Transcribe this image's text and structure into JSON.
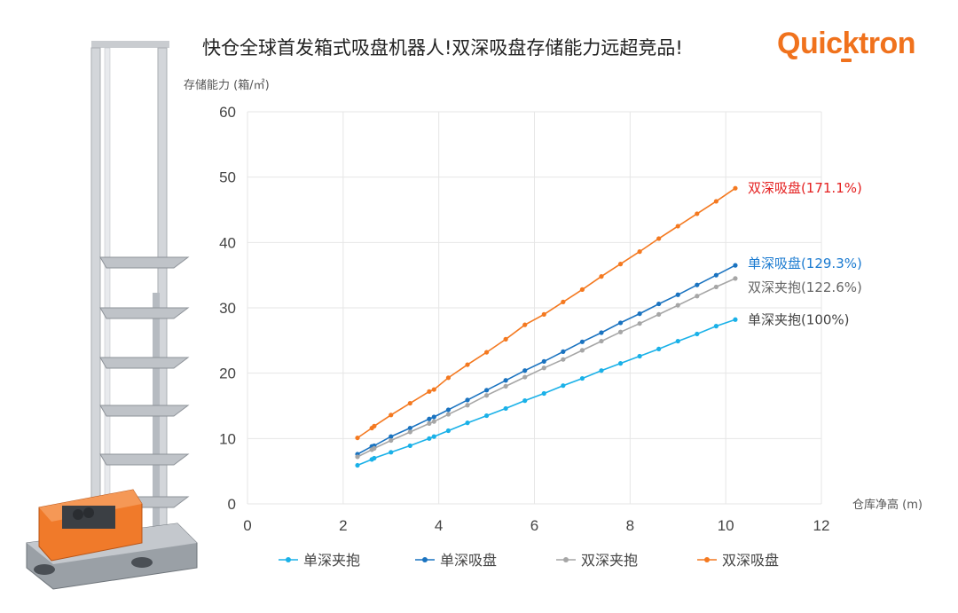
{
  "headline": "快仓全球首发箱式吸盘机器人!双深吸盘存储能力远超竞品!",
  "logo_text": "Quicktron",
  "colors": {
    "single_clamp": "#1ab1e8",
    "single_suction": "#1a73c0",
    "double_clamp": "#a6a6a6",
    "double_suction": "#f47920",
    "double_suction_label": "#e41f1f",
    "single_suction_label": "#1a7ad0",
    "double_clamp_label": "#666666",
    "single_clamp_label": "#444444",
    "grid": "#e6e6e6"
  },
  "chart_data": {
    "type": "line",
    "ylabel": "存储能力 (箱/㎡)",
    "xlabel": "仓库净高 (m)",
    "xlim": [
      0,
      12
    ],
    "ylim": [
      0,
      60
    ],
    "x_ticks": [
      0,
      2,
      4,
      6,
      8,
      10,
      12
    ],
    "y_ticks": [
      0,
      10,
      20,
      30,
      40,
      50,
      60
    ],
    "grid": true,
    "legend_position": "bottom",
    "series": [
      {
        "name": "单深夹抱",
        "end_label": "单深夹抱(100%)",
        "points": [
          [
            2.3,
            5.9
          ],
          [
            2.6,
            6.8
          ],
          [
            2.65,
            7.0
          ],
          [
            3.0,
            7.9
          ],
          [
            3.4,
            8.9
          ],
          [
            3.8,
            10.0
          ],
          [
            3.9,
            10.3
          ],
          [
            4.2,
            11.2
          ],
          [
            4.6,
            12.4
          ],
          [
            5.0,
            13.5
          ],
          [
            5.4,
            14.6
          ],
          [
            5.8,
            15.8
          ],
          [
            6.2,
            16.9
          ],
          [
            6.6,
            18.1
          ],
          [
            7.0,
            19.2
          ],
          [
            7.4,
            20.4
          ],
          [
            7.8,
            21.5
          ],
          [
            8.2,
            22.6
          ],
          [
            8.6,
            23.7
          ],
          [
            9.0,
            24.9
          ],
          [
            9.4,
            26.0
          ],
          [
            9.8,
            27.2
          ],
          [
            10.2,
            28.2
          ]
        ]
      },
      {
        "name": "单深吸盘",
        "end_label": "单深吸盘(129.3%)",
        "points": [
          [
            2.3,
            7.6
          ],
          [
            2.6,
            8.8
          ],
          [
            2.65,
            8.9
          ],
          [
            3.0,
            10.3
          ],
          [
            3.4,
            11.6
          ],
          [
            3.8,
            13.0
          ],
          [
            3.9,
            13.3
          ],
          [
            4.2,
            14.4
          ],
          [
            4.6,
            15.9
          ],
          [
            5.0,
            17.4
          ],
          [
            5.4,
            18.9
          ],
          [
            5.8,
            20.4
          ],
          [
            6.2,
            21.8
          ],
          [
            6.6,
            23.3
          ],
          [
            7.0,
            24.8
          ],
          [
            7.4,
            26.2
          ],
          [
            7.8,
            27.7
          ],
          [
            8.2,
            29.1
          ],
          [
            8.6,
            30.6
          ],
          [
            9.0,
            32.0
          ],
          [
            9.4,
            33.5
          ],
          [
            9.8,
            35.0
          ],
          [
            10.2,
            36.5
          ]
        ]
      },
      {
        "name": "双深夹抱",
        "end_label": "双深夹抱(122.6%)",
        "points": [
          [
            2.3,
            7.2
          ],
          [
            2.6,
            8.3
          ],
          [
            2.65,
            8.5
          ],
          [
            3.0,
            9.7
          ],
          [
            3.4,
            11.0
          ],
          [
            3.8,
            12.3
          ],
          [
            3.9,
            12.6
          ],
          [
            4.2,
            13.7
          ],
          [
            4.6,
            15.1
          ],
          [
            5.0,
            16.6
          ],
          [
            5.4,
            18.0
          ],
          [
            5.8,
            19.4
          ],
          [
            6.2,
            20.8
          ],
          [
            6.6,
            22.1
          ],
          [
            7.0,
            23.5
          ],
          [
            7.4,
            24.9
          ],
          [
            7.8,
            26.3
          ],
          [
            8.2,
            27.6
          ],
          [
            8.6,
            29.0
          ],
          [
            9.0,
            30.4
          ],
          [
            9.4,
            31.8
          ],
          [
            9.8,
            33.2
          ],
          [
            10.2,
            34.5
          ]
        ]
      },
      {
        "name": "双深吸盘",
        "end_label": "双深吸盘(171.1%)",
        "points": [
          [
            2.3,
            10.1
          ],
          [
            2.6,
            11.6
          ],
          [
            2.65,
            11.9
          ],
          [
            3.0,
            13.6
          ],
          [
            3.4,
            15.4
          ],
          [
            3.8,
            17.2
          ],
          [
            3.9,
            17.5
          ],
          [
            4.2,
            19.3
          ],
          [
            4.6,
            21.3
          ],
          [
            5.0,
            23.2
          ],
          [
            5.4,
            25.2
          ],
          [
            5.8,
            27.4
          ],
          [
            6.2,
            29.0
          ],
          [
            6.6,
            30.9
          ],
          [
            7.0,
            32.8
          ],
          [
            7.4,
            34.8
          ],
          [
            7.8,
            36.7
          ],
          [
            8.2,
            38.6
          ],
          [
            8.6,
            40.6
          ],
          [
            9.0,
            42.5
          ],
          [
            9.4,
            44.4
          ],
          [
            9.8,
            46.3
          ],
          [
            10.2,
            48.3
          ]
        ]
      }
    ]
  }
}
